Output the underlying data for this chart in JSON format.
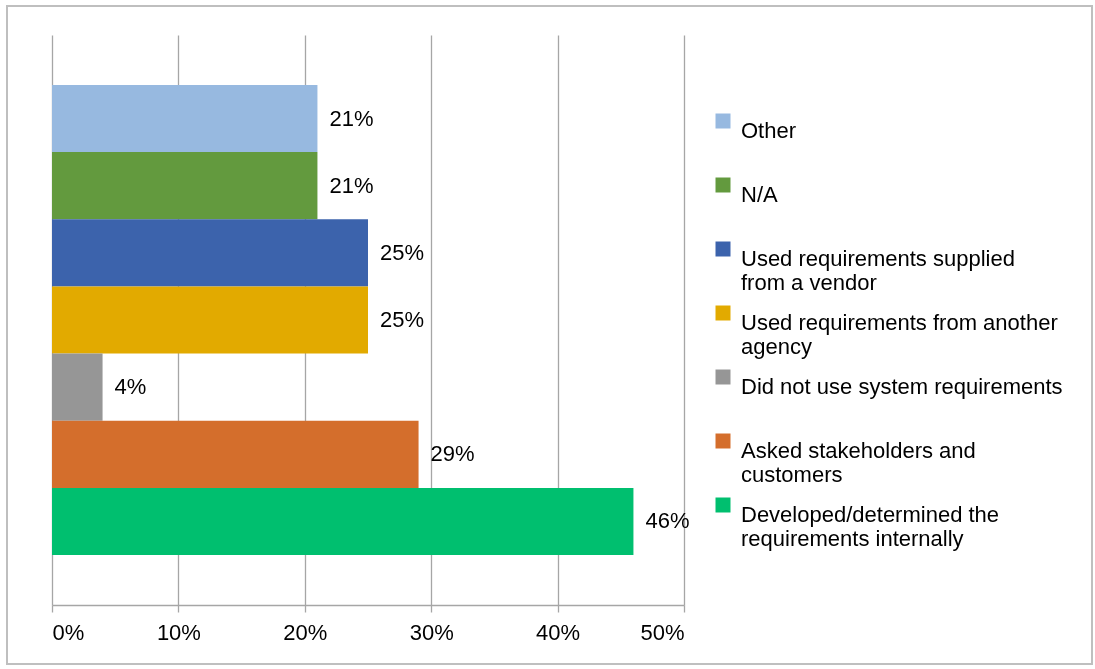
{
  "chart_data": {
    "type": "bar",
    "orientation": "horizontal",
    "categories": [
      null
    ],
    "series": [
      {
        "name": "Other",
        "color": "#97b9e0",
        "values": [
          21
        ],
        "value_labels": [
          "21%"
        ]
      },
      {
        "name": "N/A",
        "color": "#639a3e",
        "values": [
          21
        ],
        "value_labels": [
          "21%"
        ]
      },
      {
        "name": "Used requirements supplied from a vendor",
        "color": "#3c63ac",
        "values": [
          25
        ],
        "value_labels": [
          "25%"
        ]
      },
      {
        "name": "Used requirements from another agency",
        "color": "#e2aa00",
        "values": [
          25
        ],
        "value_labels": [
          "25%"
        ]
      },
      {
        "name": "Did not use system requirements",
        "color": "#969696",
        "values": [
          4
        ],
        "value_labels": [
          "4%"
        ]
      },
      {
        "name": "Asked stakeholders and customers",
        "color": "#d46e2c",
        "values": [
          29
        ],
        "value_labels": [
          "29%"
        ]
      },
      {
        "name": "Developed/determined the requirements internally",
        "color": "#00bf6f",
        "values": [
          46
        ],
        "value_labels": [
          "46%"
        ]
      }
    ],
    "xlim": [
      0,
      50
    ],
    "xticks": [
      {
        "value": 0,
        "label": "0%"
      },
      {
        "value": 10,
        "label": "10%"
      },
      {
        "value": 20,
        "label": "20%"
      },
      {
        "value": 30,
        "label": "30%"
      },
      {
        "value": 40,
        "label": "40%"
      },
      {
        "value": 50,
        "label": "50%"
      }
    ],
    "grid": "x",
    "legend": "right",
    "tick_labels": "x"
  }
}
